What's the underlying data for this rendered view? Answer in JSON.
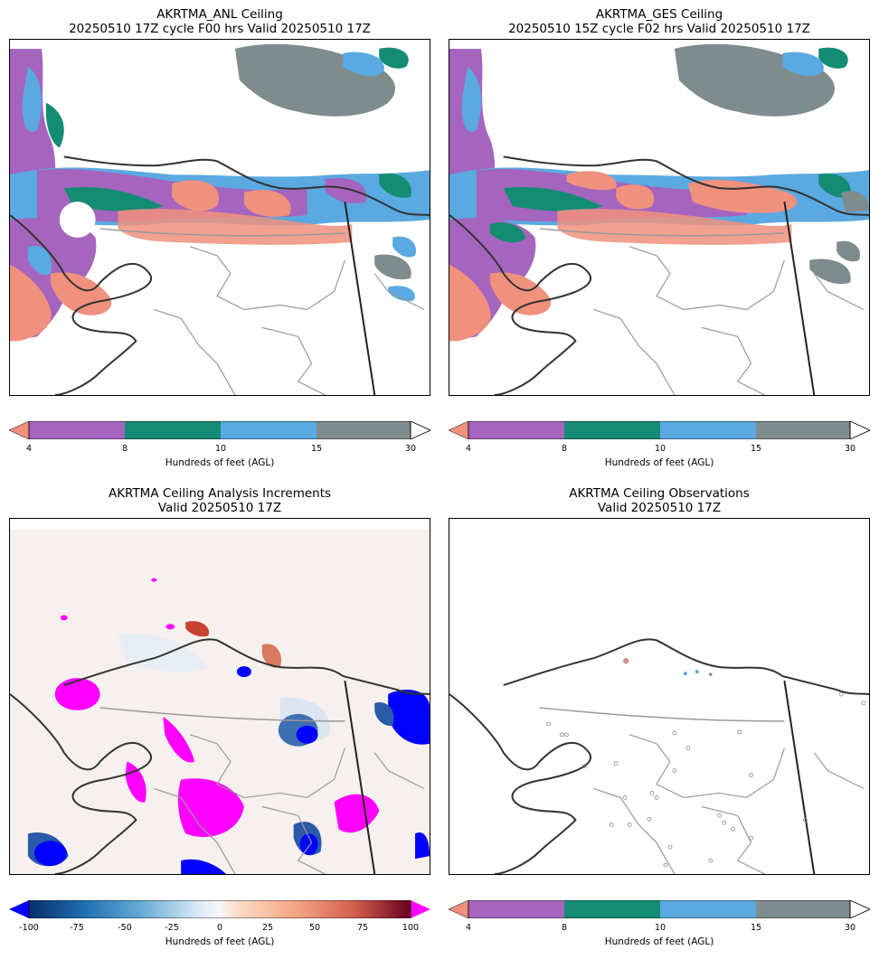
{
  "panels": {
    "anl": {
      "title_line1": "AKRTMA_ANL Ceiling",
      "title_line2": "20250510 17Z cycle F00 hrs Valid 20250510 17Z"
    },
    "ges": {
      "title_line1": "AKRTMA_GES Ceiling",
      "title_line2": "20250510 15Z cycle F02 hrs Valid 20250510 17Z"
    },
    "inc": {
      "title_line1": "AKRTMA Ceiling Analysis Increments",
      "title_line2": "Valid 20250510 17Z"
    },
    "obs": {
      "title_line1": "AKRTMA Ceiling Observations",
      "title_line2": "Valid 20250510 17Z"
    }
  },
  "ceiling_colorbar": {
    "label": "Hundreds of feet (AGL)",
    "ticks": [
      "4",
      "8",
      "10",
      "15",
      "30"
    ],
    "colors": {
      "under": "#f0917e",
      "b4_8": "#a565be",
      "b8_10": "#148c74",
      "b10_15": "#5aa9e1",
      "b15_30": "#7f8c8d",
      "over": "#ffffff"
    }
  },
  "increment_colorbar": {
    "label": "Hundreds of feet (AGL)",
    "ticks": [
      "-100",
      "-75",
      "-50",
      "-25",
      "0",
      "25",
      "50",
      "75",
      "100"
    ],
    "colors": {
      "under": "#0000ff",
      "over": "#ff00ff"
    }
  },
  "chart_data": {
    "type": "heatmap",
    "description_panels": [
      "AKRTMA_ANL Ceiling",
      "AKRTMA_GES Ceiling",
      "AKRTMA Ceiling Analysis Increments",
      "AKRTMA Ceiling Observations"
    ],
    "ceiling_levels": [
      4,
      8,
      10,
      15,
      30
    ],
    "increment_levels": [
      -100,
      -75,
      -50,
      -25,
      0,
      25,
      50,
      75,
      100
    ],
    "units": "Hundreds of feet (AGL)"
  }
}
